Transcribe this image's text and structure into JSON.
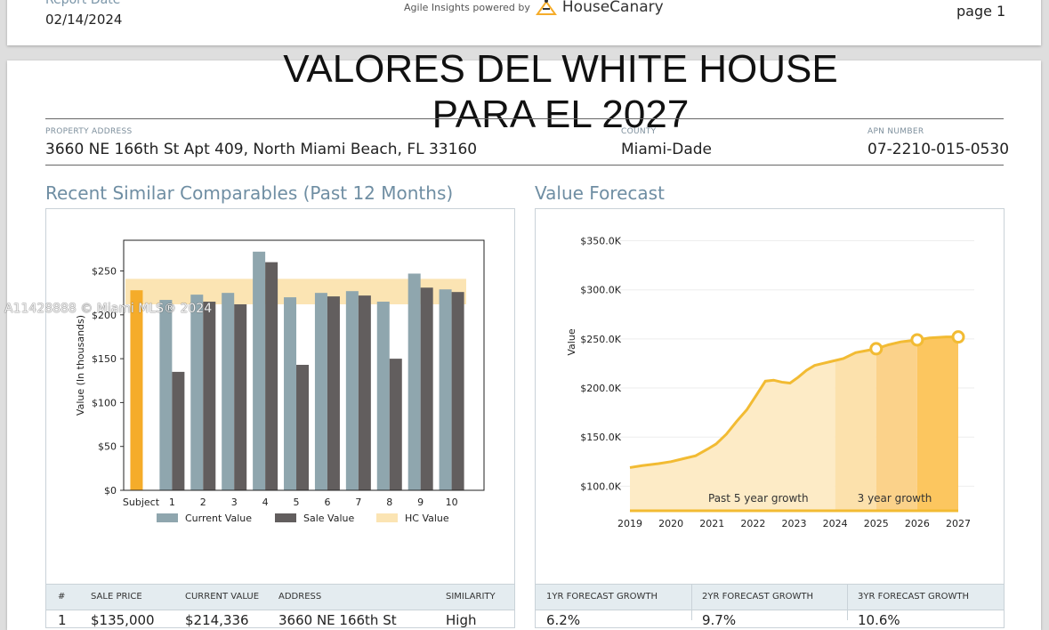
{
  "header": {
    "report_date_label": "Report Date",
    "report_date": "02/14/2024",
    "powered_by": "Agile Insights powered by",
    "brand": "HouseCanary",
    "page_label": "page 1"
  },
  "title": {
    "line1": "VALORES DEL WHITE HOUSE",
    "line2": "PARA EL 2027"
  },
  "property": {
    "address_label": "PROPERTY ADDRESS",
    "address": "3660 NE 166th St Apt 409, North Miami Beach, FL 33160",
    "county_label": "COUNTY",
    "county": "Miami-Dade",
    "apn_label": "APN NUMBER",
    "apn": "07-2210-015-0530"
  },
  "watermark": "A11428888 © Miami MLS® 2024",
  "comparables": {
    "section_title": "Recent Similar Comparables (Past 12 Months)",
    "table_headers": [
      "#",
      "SALE PRICE",
      "CURRENT VALUE",
      "ADDRESS",
      "SIMILARITY"
    ],
    "first_row": [
      "1",
      "$135,000",
      "$214,336",
      "3660 NE 166th St",
      "High"
    ]
  },
  "forecast": {
    "section_title": "Value Forecast",
    "table_headers": [
      "1YR FORECAST GROWTH",
      "2YR FORECAST GROWTH",
      "3YR FORECAST GROWTH"
    ],
    "first_row": [
      "6.2%",
      "9.7%",
      "10.6%"
    ]
  },
  "chart_data": [
    {
      "type": "bar",
      "ylabel": "Value (In thousands)",
      "ylim": [
        0,
        285
      ],
      "yticks": [
        0,
        50,
        100,
        150,
        200,
        250
      ],
      "ytick_labels": [
        "$0",
        "$50",
        "$100",
        "$150",
        "$200",
        "$250"
      ],
      "categories": [
        "Subject",
        "1",
        "2",
        "3",
        "4",
        "5",
        "6",
        "7",
        "8",
        "9",
        "10"
      ],
      "subject_value": 228,
      "hc_value_band": [
        212,
        241
      ],
      "series": [
        {
          "name": "Current Value",
          "color": "#8fa6ae",
          "values": [
            null,
            217,
            223,
            225,
            272,
            220,
            225,
            227,
            215,
            247,
            229
          ]
        },
        {
          "name": "Sale Value",
          "color": "#625e5e",
          "values": [
            null,
            135,
            215,
            212,
            260,
            143,
            221,
            222,
            150,
            231,
            226
          ]
        }
      ],
      "legend": [
        {
          "name": "Current Value",
          "color": "#8fa6ae"
        },
        {
          "name": "Sale Value",
          "color": "#625e5e"
        },
        {
          "name": "HC Value",
          "color": "#fbe4b3"
        }
      ],
      "subject_color": "#f5ac2a",
      "legend_position": "bottom"
    },
    {
      "type": "area",
      "ylabel": "Value",
      "ylim": [
        75000,
        355000
      ],
      "yticks": [
        100000,
        150000,
        200000,
        250000,
        300000,
        350000
      ],
      "ytick_labels": [
        "$100.0K",
        "$150.0K",
        "$200.0K",
        "$250.0K",
        "$300.0K",
        "$350.0K"
      ],
      "xlim": [
        2019,
        2027
      ],
      "xticks": [
        "2019",
        "2020",
        "2021",
        "2022",
        "2023",
        "2024",
        "2025",
        "2026",
        "2027"
      ],
      "x": [
        2019,
        2019.3,
        2019.7,
        2020,
        2020.3,
        2020.6,
        2020.9,
        2021.1,
        2021.35,
        2021.6,
        2021.85,
        2022.1,
        2022.3,
        2022.5,
        2022.7,
        2022.9,
        2023.1,
        2023.3,
        2023.5,
        2023.7,
        2023.9,
        2024.2,
        2024.5,
        2024.75,
        2025,
        2025.3,
        2025.6,
        2026,
        2026.3,
        2026.7,
        2027
      ],
      "y": [
        119000,
        121000,
        123000,
        125000,
        128000,
        131000,
        138000,
        143000,
        153000,
        166000,
        178000,
        194000,
        207000,
        208000,
        206000,
        205000,
        211000,
        218000,
        223000,
        225000,
        227000,
        230000,
        236000,
        238000,
        240000,
        244000,
        247000,
        249000,
        251000,
        252000,
        252000
      ],
      "forecast_points": [
        {
          "x": 2025,
          "y": 240000
        },
        {
          "x": 2026,
          "y": 249000
        },
        {
          "x": 2027,
          "y": 252000
        }
      ],
      "annotations": [
        "Past 5 year growth",
        "3 year growth"
      ],
      "colors": {
        "line": "#f2bb33",
        "past": "#fdebc6",
        "y1": "#fce1ac",
        "y2": "#fbd28a",
        "y3": "#fcc65f"
      }
    }
  ]
}
